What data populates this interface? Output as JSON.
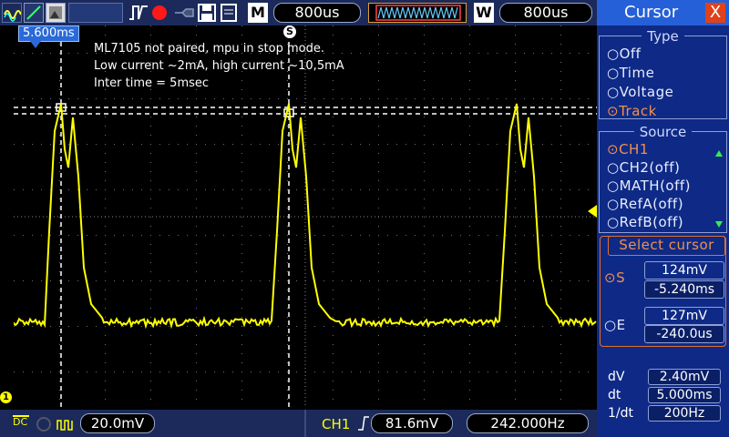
{
  "toolbar": {
    "time_left": "800us",
    "mem_letter": "M",
    "window_letter": "W",
    "time_right": "800us",
    "icons": [
      "waveform-icon",
      "run-stop-icon",
      "trigger-icon",
      "save-icon",
      "file-icon"
    ]
  },
  "screen": {
    "trigger_delay": "5.600ms",
    "trigger_marker": "S",
    "note_lines": [
      "ML7105 not paired, mpu in stop mode.",
      "Low current ~2mA, high current ~10,5mA",
      "Inter time = 5msec"
    ],
    "channel_marker": "1",
    "colors": {
      "trace": "#ffff00",
      "cursor": "#ffffff",
      "grid": "#6e6e6e"
    }
  },
  "bottom": {
    "coupling": "DC",
    "ch_scale": "20.0mV",
    "trigger_channel": "CH1",
    "trigger_level": "81.6mV",
    "frequency": "242.000Hz"
  },
  "cursor_panel": {
    "title": "Cursor",
    "close": "X",
    "type_heading": "Type",
    "types": [
      "Off",
      "Time",
      "Voltage",
      "Track"
    ],
    "type_selected": "Track",
    "source_heading": "Source",
    "sources": [
      "CH1",
      "CH2(off)",
      "MATH(off)",
      "RefA(off)",
      "RefB(off)"
    ],
    "source_selected": "CH1",
    "select_heading": "Select cursor",
    "cursor_s": {
      "label": "S",
      "voltage": "124mV",
      "time": "-5.240ms"
    },
    "cursor_e": {
      "label": "E",
      "voltage": "127mV",
      "time": "-240.0us"
    },
    "measurements": [
      {
        "label": "dV",
        "value": "2.40mV"
      },
      {
        "label": "dt",
        "value": "5.000ms"
      },
      {
        "label": "1/dt",
        "value": "200Hz"
      }
    ]
  }
}
